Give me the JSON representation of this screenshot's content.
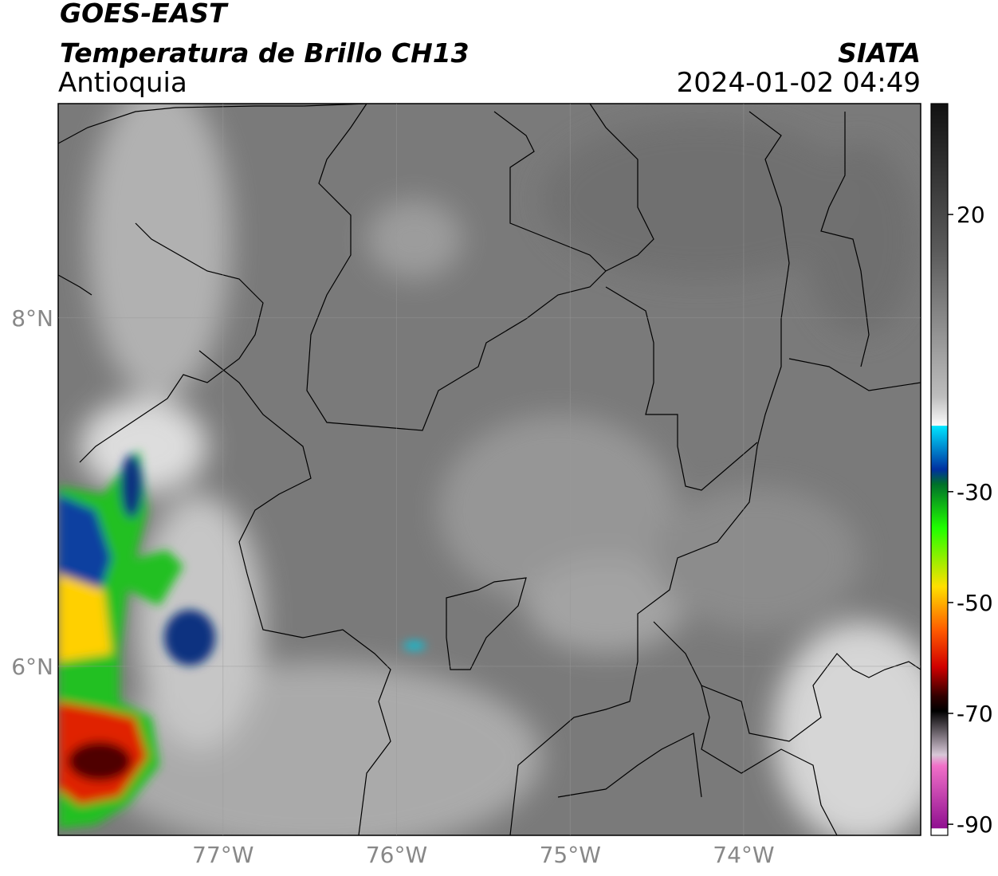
{
  "header": {
    "satellite": "GOES-EAST",
    "product": "Temperatura de Brillo CH13",
    "region": "Antioquia",
    "source": "SIATA",
    "datetime": "2024-01-02 04:49"
  },
  "map": {
    "latlim": [
      5.03,
      9.23
    ],
    "lonlim": [
      -77.95,
      -72.98
    ],
    "lat_ticks": [
      {
        "value": 8,
        "label": "8°N"
      },
      {
        "value": 6,
        "label": "6°N"
      }
    ],
    "lon_ticks": [
      {
        "value": -77,
        "label": "77°W"
      },
      {
        "value": -76,
        "label": "76°W"
      },
      {
        "value": -75,
        "label": "75°W"
      },
      {
        "value": -74,
        "label": "74°W"
      }
    ]
  },
  "colorbar": {
    "lim": [
      -92,
      40
    ],
    "ticks": [
      20,
      -30,
      -50,
      -70,
      -90
    ]
  }
}
